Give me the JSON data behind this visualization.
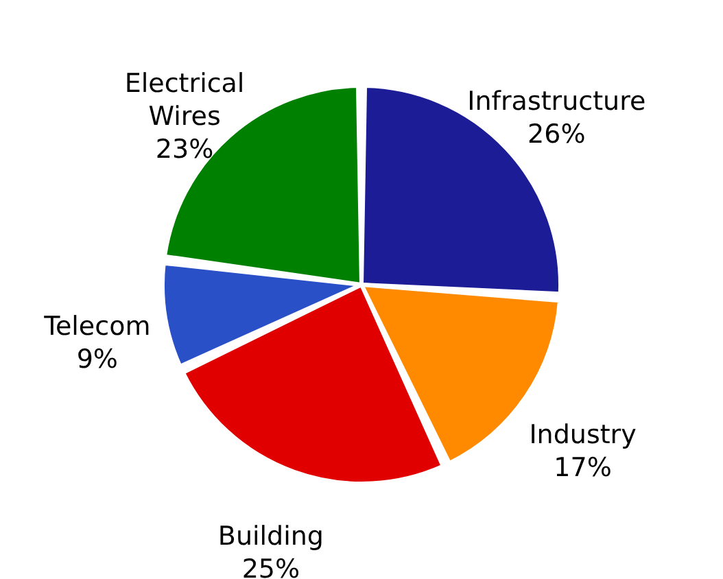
{
  "chart_data": {
    "type": "pie",
    "categories": [
      "Infrastructure",
      "Industry",
      "Building",
      "Telecom",
      "Electrical Wires"
    ],
    "values": [
      26,
      17,
      25,
      9,
      23
    ],
    "value_labels": [
      "26%",
      "17%",
      "25%",
      "9%",
      "23%"
    ],
    "colors": [
      "#1c1c96",
      "#ff8a00",
      "#e00000",
      "#2a50c8",
      "#008000"
    ],
    "legend": false
  }
}
